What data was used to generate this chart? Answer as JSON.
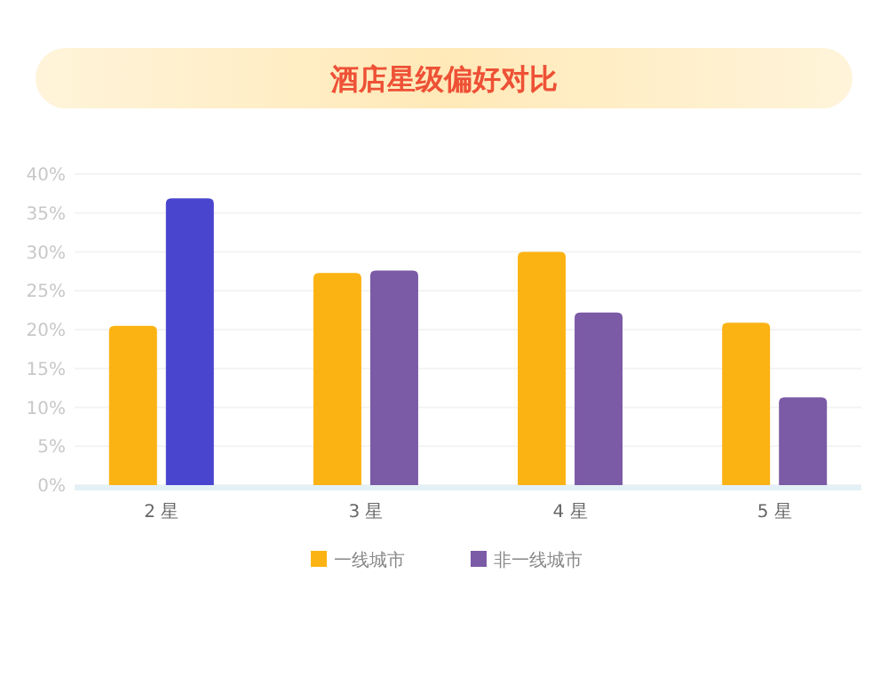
{
  "chart_data": {
    "type": "bar",
    "title": "酒店星级偏好对比",
    "categories": [
      "2 星",
      "3 星",
      "4 星",
      "5 星"
    ],
    "series": [
      {
        "name": "一线城市",
        "color": "#fbb313",
        "values": [
          20.5,
          27.3,
          30.0,
          20.9
        ]
      },
      {
        "name": "非一线城市",
        "color": "#7b5aa6",
        "colors": [
          "#4a45cf",
          "#7b5aa6",
          "#7b5aa6",
          "#7b5aa6"
        ],
        "values": [
          36.9,
          27.6,
          22.2,
          11.3
        ]
      }
    ],
    "ylim": [
      0,
      40
    ],
    "yticks": [
      {
        "value": 0,
        "label": "0%"
      },
      {
        "value": 5,
        "label": "5%"
      },
      {
        "value": 10,
        "label": "10%"
      },
      {
        "value": 15,
        "label": "15%"
      },
      {
        "value": 20,
        "label": "20%"
      },
      {
        "value": 25,
        "label": "25%"
      },
      {
        "value": 30,
        "label": "30%"
      },
      {
        "value": 35,
        "label": "35%"
      },
      {
        "value": 40,
        "label": "40%"
      }
    ],
    "grid": "y",
    "legend": "bottom"
  }
}
